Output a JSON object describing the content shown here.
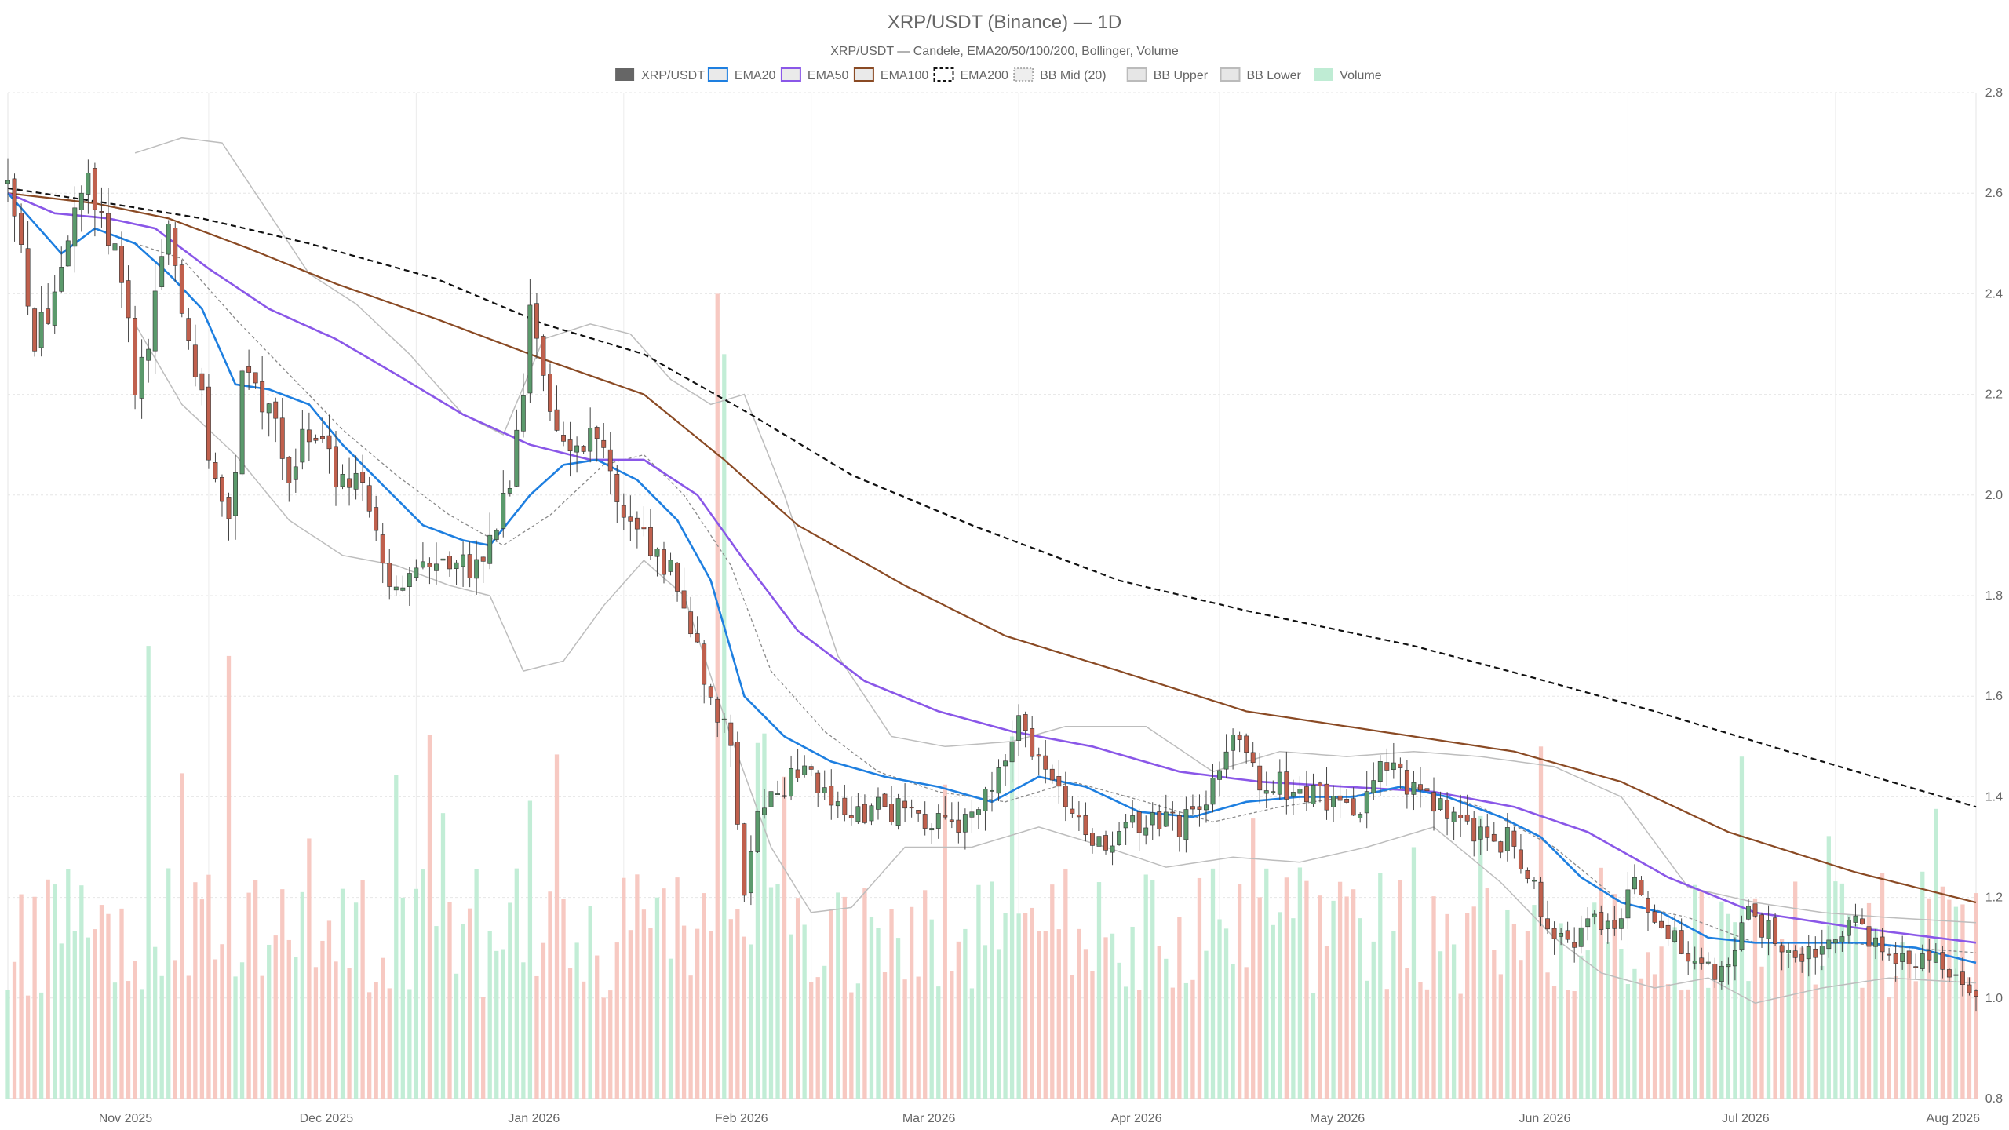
{
  "chart_data": {
    "type": "candlestick",
    "title": "XRP/USDT (Binance) — 1D",
    "subtitle": "XRP/USDT — Candele, EMA20/50/100/200, Bollinger, Volume",
    "legend_position": "top-center",
    "legend": [
      {
        "key": "candles",
        "label": "XRP/USDT",
        "color": "#666666",
        "swatch": "solid"
      },
      {
        "key": "ema20",
        "label": "EMA20",
        "color": "#1e7fe0",
        "swatch": "box"
      },
      {
        "key": "ema50",
        "label": "EMA50",
        "color": "#8a57e8",
        "swatch": "box"
      },
      {
        "key": "ema100",
        "label": "EMA100",
        "color": "#8a4a24",
        "swatch": "box"
      },
      {
        "key": "ema200",
        "label": "EMA200",
        "color": "#111111",
        "swatch": "dashed"
      },
      {
        "key": "bbmid",
        "label": "BB Mid (20)",
        "color": "#999999",
        "swatch": "dotted"
      },
      {
        "key": "bbupper",
        "label": "BB Upper",
        "color": "#bbbbbb",
        "swatch": "box"
      },
      {
        "key": "bblower",
        "label": "BB Lower",
        "color": "#bbbbbb",
        "swatch": "box"
      },
      {
        "key": "volume",
        "label": "Volume",
        "color": "#bfecd4",
        "swatch": "solid"
      }
    ],
    "y_axis": {
      "min": 0.8,
      "max": 2.8,
      "ticks": [
        "0.8",
        "1.0",
        "1.2",
        "1.4",
        "1.6",
        "1.8",
        "2.0",
        "2.2",
        "2.4",
        "2.6",
        "2.8"
      ],
      "position": "right"
    },
    "x_axis": {
      "start_date": "2025-10-17",
      "end_date": "2026-08-07",
      "ticks": [
        {
          "label": "Nov 2025",
          "date": "2025-11-01"
        },
        {
          "label": "Dec 2025",
          "date": "2025-12-01"
        },
        {
          "label": "Jan 2026",
          "date": "2026-01-01"
        },
        {
          "label": "Feb 2026",
          "date": "2026-02-01"
        },
        {
          "label": "Mar 2026",
          "date": "2026-03-01"
        },
        {
          "label": "Apr 2026",
          "date": "2026-04-01"
        },
        {
          "label": "May 2026",
          "date": "2026-05-01"
        },
        {
          "label": "Jun 2026",
          "date": "2026-06-01"
        },
        {
          "label": "Jul 2026",
          "date": "2026-07-01"
        },
        {
          "label": "Aug 2026",
          "date": "2026-08-01"
        }
      ]
    },
    "grid": true,
    "colors": {
      "up": "#5b9a6c",
      "down": "#c0604d",
      "vol_up": "#bfecd4",
      "vol_down": "#f7c6bf"
    },
    "close_anchors": [
      [
        "2025-10-17",
        2.6
      ],
      [
        "2025-10-19",
        2.5
      ],
      [
        "2025-10-21",
        2.32
      ],
      [
        "2025-10-24",
        2.38
      ],
      [
        "2025-10-27",
        2.56
      ],
      [
        "2025-10-29",
        2.6
      ],
      [
        "2025-11-01",
        2.52
      ],
      [
        "2025-11-03",
        2.43
      ],
      [
        "2025-11-05",
        2.22
      ],
      [
        "2025-11-07",
        2.31
      ],
      [
        "2025-11-10",
        2.52
      ],
      [
        "2025-11-13",
        2.28
      ],
      [
        "2025-11-15",
        2.18
      ],
      [
        "2025-11-17",
        2.0
      ],
      [
        "2025-11-19",
        1.92
      ],
      [
        "2025-11-21",
        2.22
      ],
      [
        "2025-11-25",
        2.18
      ],
      [
        "2025-11-28",
        2.02
      ],
      [
        "2025-12-01",
        2.14
      ],
      [
        "2025-12-05",
        2.03
      ],
      [
        "2025-12-09",
        2.01
      ],
      [
        "2025-12-12",
        1.87
      ],
      [
        "2025-12-15",
        1.81
      ],
      [
        "2025-12-18",
        1.9
      ],
      [
        "2025-12-22",
        1.85
      ],
      [
        "2025-12-25",
        1.86
      ],
      [
        "2025-12-28",
        1.9
      ],
      [
        "2025-12-31",
        2.02
      ],
      [
        "2026-01-03",
        2.34
      ],
      [
        "2026-01-06",
        2.18
      ],
      [
        "2026-01-09",
        2.11
      ],
      [
        "2026-01-12",
        2.1
      ],
      [
        "2026-01-15",
        2.05
      ],
      [
        "2026-01-18",
        1.95
      ],
      [
        "2026-01-21",
        1.9
      ],
      [
        "2026-01-24",
        1.86
      ],
      [
        "2026-01-27",
        1.74
      ],
      [
        "2026-01-30",
        1.6
      ],
      [
        "2026-02-02",
        1.52
      ],
      [
        "2026-02-04",
        1.22
      ],
      [
        "2026-02-06",
        1.38
      ],
      [
        "2026-02-09",
        1.4
      ],
      [
        "2026-02-13",
        1.48
      ],
      [
        "2026-02-16",
        1.4
      ],
      [
        "2026-02-20",
        1.35
      ],
      [
        "2026-02-24",
        1.38
      ],
      [
        "2026-03-01",
        1.37
      ],
      [
        "2026-03-06",
        1.34
      ],
      [
        "2026-03-10",
        1.36
      ],
      [
        "2026-03-14",
        1.44
      ],
      [
        "2026-03-17",
        1.54
      ],
      [
        "2026-03-21",
        1.45
      ],
      [
        "2026-03-25",
        1.35
      ],
      [
        "2026-03-29",
        1.31
      ],
      [
        "2026-04-02",
        1.33
      ],
      [
        "2026-04-06",
        1.36
      ],
      [
        "2026-04-10",
        1.34
      ],
      [
        "2026-04-14",
        1.4
      ],
      [
        "2026-04-18",
        1.5
      ],
      [
        "2026-04-22",
        1.44
      ],
      [
        "2026-04-26",
        1.42
      ],
      [
        "2026-04-30",
        1.4
      ],
      [
        "2026-05-04",
        1.38
      ],
      [
        "2026-05-08",
        1.39
      ],
      [
        "2026-05-11",
        1.47
      ],
      [
        "2026-05-14",
        1.42
      ],
      [
        "2026-05-18",
        1.38
      ],
      [
        "2026-05-22",
        1.35
      ],
      [
        "2026-05-26",
        1.32
      ],
      [
        "2026-05-30",
        1.31
      ],
      [
        "2026-06-02",
        1.22
      ],
      [
        "2026-06-05",
        1.1
      ],
      [
        "2026-06-08",
        1.12
      ],
      [
        "2026-06-11",
        1.18
      ],
      [
        "2026-06-14",
        1.12
      ],
      [
        "2026-06-17",
        1.23
      ],
      [
        "2026-06-20",
        1.15
      ],
      [
        "2026-06-23",
        1.13
      ],
      [
        "2026-06-26",
        1.05
      ],
      [
        "2026-06-30",
        1.06
      ],
      [
        "2026-07-04",
        1.16
      ],
      [
        "2026-07-08",
        1.12
      ],
      [
        "2026-07-12",
        1.09
      ],
      [
        "2026-07-16",
        1.11
      ],
      [
        "2026-07-20",
        1.15
      ],
      [
        "2026-07-24",
        1.09
      ],
      [
        "2026-07-28",
        1.08
      ],
      [
        "2026-08-01",
        1.07
      ],
      [
        "2026-08-04",
        1.05
      ],
      [
        "2026-08-07",
        1.02
      ]
    ],
    "ema20_anchors": [
      [
        "2025-10-17",
        2.6
      ],
      [
        "2025-10-21",
        2.54
      ],
      [
        "2025-10-25",
        2.48
      ],
      [
        "2025-10-30",
        2.53
      ],
      [
        "2025-11-05",
        2.5
      ],
      [
        "2025-11-10",
        2.44
      ],
      [
        "2025-11-15",
        2.37
      ],
      [
        "2025-11-20",
        2.22
      ],
      [
        "2025-11-25",
        2.21
      ],
      [
        "2025-12-01",
        2.18
      ],
      [
        "2025-12-06",
        2.1
      ],
      [
        "2025-12-12",
        2.02
      ],
      [
        "2025-12-18",
        1.94
      ],
      [
        "2025-12-24",
        1.91
      ],
      [
        "2025-12-28",
        1.9
      ],
      [
        "2026-01-03",
        2.0
      ],
      [
        "2026-01-08",
        2.06
      ],
      [
        "2026-01-13",
        2.07
      ],
      [
        "2026-01-19",
        2.03
      ],
      [
        "2026-01-25",
        1.95
      ],
      [
        "2026-01-30",
        1.83
      ],
      [
        "2026-02-04",
        1.6
      ],
      [
        "2026-02-10",
        1.52
      ],
      [
        "2026-02-17",
        1.47
      ],
      [
        "2026-02-25",
        1.44
      ],
      [
        "2026-03-05",
        1.42
      ],
      [
        "2026-03-13",
        1.39
      ],
      [
        "2026-03-20",
        1.44
      ],
      [
        "2026-03-27",
        1.42
      ],
      [
        "2026-04-04",
        1.37
      ],
      [
        "2026-04-12",
        1.36
      ],
      [
        "2026-04-20",
        1.39
      ],
      [
        "2026-04-28",
        1.4
      ],
      [
        "2026-05-06",
        1.4
      ],
      [
        "2026-05-13",
        1.42
      ],
      [
        "2026-05-20",
        1.4
      ],
      [
        "2026-05-28",
        1.36
      ],
      [
        "2026-06-03",
        1.32
      ],
      [
        "2026-06-09",
        1.24
      ],
      [
        "2026-06-15",
        1.19
      ],
      [
        "2026-06-21",
        1.17
      ],
      [
        "2026-06-28",
        1.12
      ],
      [
        "2026-07-05",
        1.11
      ],
      [
        "2026-07-13",
        1.11
      ],
      [
        "2026-07-21",
        1.11
      ],
      [
        "2026-07-29",
        1.1
      ],
      [
        "2026-08-07",
        1.07
      ]
    ],
    "ema50_anchors": [
      [
        "2025-10-17",
        2.6
      ],
      [
        "2025-10-24",
        2.56
      ],
      [
        "2025-11-01",
        2.55
      ],
      [
        "2025-11-08",
        2.53
      ],
      [
        "2025-11-16",
        2.45
      ],
      [
        "2025-11-25",
        2.37
      ],
      [
        "2025-12-05",
        2.31
      ],
      [
        "2025-12-14",
        2.24
      ],
      [
        "2025-12-24",
        2.16
      ],
      [
        "2026-01-03",
        2.1
      ],
      [
        "2026-01-12",
        2.07
      ],
      [
        "2026-01-20",
        2.07
      ],
      [
        "2026-01-28",
        2.0
      ],
      [
        "2026-02-04",
        1.87
      ],
      [
        "2026-02-12",
        1.73
      ],
      [
        "2026-02-22",
        1.63
      ],
      [
        "2026-03-05",
        1.57
      ],
      [
        "2026-03-16",
        1.53
      ],
      [
        "2026-03-28",
        1.5
      ],
      [
        "2026-04-10",
        1.45
      ],
      [
        "2026-04-22",
        1.43
      ],
      [
        "2026-05-05",
        1.42
      ],
      [
        "2026-05-18",
        1.41
      ],
      [
        "2026-05-30",
        1.38
      ],
      [
        "2026-06-10",
        1.33
      ],
      [
        "2026-06-22",
        1.24
      ],
      [
        "2026-07-05",
        1.17
      ],
      [
        "2026-07-20",
        1.14
      ],
      [
        "2026-08-07",
        1.11
      ]
    ],
    "ema100_anchors": [
      [
        "2025-10-17",
        2.6
      ],
      [
        "2025-10-30",
        2.58
      ],
      [
        "2025-11-10",
        2.55
      ],
      [
        "2025-11-22",
        2.49
      ],
      [
        "2025-12-05",
        2.42
      ],
      [
        "2025-12-20",
        2.35
      ],
      [
        "2026-01-05",
        2.27
      ],
      [
        "2026-01-20",
        2.2
      ],
      [
        "2026-02-01",
        2.07
      ],
      [
        "2026-02-12",
        1.94
      ],
      [
        "2026-02-28",
        1.82
      ],
      [
        "2026-03-15",
        1.72
      ],
      [
        "2026-04-01",
        1.65
      ],
      [
        "2026-04-20",
        1.57
      ],
      [
        "2026-05-10",
        1.53
      ],
      [
        "2026-05-30",
        1.49
      ],
      [
        "2026-06-15",
        1.43
      ],
      [
        "2026-07-01",
        1.33
      ],
      [
        "2026-07-20",
        1.25
      ],
      [
        "2026-08-07",
        1.19
      ]
    ],
    "ema200_anchors": [
      [
        "2025-10-17",
        2.61
      ],
      [
        "2025-11-01",
        2.58
      ],
      [
        "2025-11-15",
        2.55
      ],
      [
        "2025-12-01",
        2.5
      ],
      [
        "2025-12-20",
        2.43
      ],
      [
        "2026-01-05",
        2.34
      ],
      [
        "2026-01-20",
        2.28
      ],
      [
        "2026-02-05",
        2.16
      ],
      [
        "2026-02-20",
        2.04
      ],
      [
        "2026-03-10",
        1.94
      ],
      [
        "2026-04-01",
        1.83
      ],
      [
        "2026-04-20",
        1.77
      ],
      [
        "2026-05-15",
        1.7
      ],
      [
        "2026-06-01",
        1.64
      ],
      [
        "2026-06-20",
        1.57
      ],
      [
        "2026-07-10",
        1.49
      ],
      [
        "2026-08-07",
        1.38
      ]
    ],
    "bbmid_anchors": [
      [
        "2025-11-05",
        2.5
      ],
      [
        "2025-11-12",
        2.47
      ],
      [
        "2025-11-20",
        2.35
      ],
      [
        "2025-11-28",
        2.24
      ],
      [
        "2025-12-06",
        2.13
      ],
      [
        "2025-12-14",
        2.04
      ],
      [
        "2025-12-22",
        1.96
      ],
      [
        "2025-12-30",
        1.9
      ],
      [
        "2026-01-06",
        1.96
      ],
      [
        "2026-01-14",
        2.06
      ],
      [
        "2026-01-20",
        2.08
      ],
      [
        "2026-01-26",
        2.0
      ],
      [
        "2026-02-02",
        1.86
      ],
      [
        "2026-02-08",
        1.65
      ],
      [
        "2026-02-16",
        1.53
      ],
      [
        "2026-02-24",
        1.45
      ],
      [
        "2026-03-05",
        1.41
      ],
      [
        "2026-03-15",
        1.39
      ],
      [
        "2026-03-25",
        1.43
      ],
      [
        "2026-04-05",
        1.39
      ],
      [
        "2026-04-15",
        1.35
      ],
      [
        "2026-04-25",
        1.38
      ],
      [
        "2026-05-05",
        1.4
      ],
      [
        "2026-05-15",
        1.42
      ],
      [
        "2026-05-25",
        1.38
      ],
      [
        "2026-06-05",
        1.3
      ],
      [
        "2026-06-15",
        1.19
      ],
      [
        "2026-06-25",
        1.16
      ],
      [
        "2026-07-05",
        1.11
      ],
      [
        "2026-07-18",
        1.11
      ],
      [
        "2026-08-07",
        1.09
      ]
    ],
    "bbupper_anchors": [
      [
        "2025-11-05",
        2.68
      ],
      [
        "2025-11-12",
        2.71
      ],
      [
        "2025-11-18",
        2.7
      ],
      [
        "2025-11-24",
        2.58
      ],
      [
        "2025-12-01",
        2.44
      ],
      [
        "2025-12-08",
        2.38
      ],
      [
        "2025-12-16",
        2.28
      ],
      [
        "2025-12-24",
        2.16
      ],
      [
        "2025-12-30",
        2.12
      ],
      [
        "2026-01-05",
        2.31
      ],
      [
        "2026-01-12",
        2.34
      ],
      [
        "2026-01-18",
        2.32
      ],
      [
        "2026-01-24",
        2.23
      ],
      [
        "2026-01-30",
        2.18
      ],
      [
        "2026-02-04",
        2.2
      ],
      [
        "2026-02-10",
        2.0
      ],
      [
        "2026-02-18",
        1.68
      ],
      [
        "2026-02-26",
        1.52
      ],
      [
        "2026-03-06",
        1.5
      ],
      [
        "2026-03-16",
        1.51
      ],
      [
        "2026-03-24",
        1.54
      ],
      [
        "2026-04-05",
        1.54
      ],
      [
        "2026-04-15",
        1.45
      ],
      [
        "2026-04-25",
        1.49
      ],
      [
        "2026-05-05",
        1.48
      ],
      [
        "2026-05-15",
        1.49
      ],
      [
        "2026-05-25",
        1.48
      ],
      [
        "2026-06-05",
        1.46
      ],
      [
        "2026-06-15",
        1.4
      ],
      [
        "2026-06-25",
        1.22
      ],
      [
        "2026-07-05",
        1.19
      ],
      [
        "2026-07-15",
        1.17
      ],
      [
        "2026-07-25",
        1.16
      ],
      [
        "2026-08-07",
        1.15
      ]
    ],
    "bblower_anchors": [
      [
        "2025-11-05",
        2.34
      ],
      [
        "2025-11-12",
        2.18
      ],
      [
        "2025-11-20",
        2.08
      ],
      [
        "2025-11-28",
        1.95
      ],
      [
        "2025-12-06",
        1.88
      ],
      [
        "2025-12-14",
        1.86
      ],
      [
        "2025-12-22",
        1.82
      ],
      [
        "2025-12-28",
        1.8
      ],
      [
        "2026-01-02",
        1.65
      ],
      [
        "2026-01-08",
        1.67
      ],
      [
        "2026-01-14",
        1.78
      ],
      [
        "2026-01-20",
        1.87
      ],
      [
        "2026-01-26",
        1.8
      ],
      [
        "2026-02-02",
        1.52
      ],
      [
        "2026-02-08",
        1.3
      ],
      [
        "2026-02-14",
        1.17
      ],
      [
        "2026-02-20",
        1.18
      ],
      [
        "2026-02-28",
        1.3
      ],
      [
        "2026-03-10",
        1.3
      ],
      [
        "2026-03-20",
        1.34
      ],
      [
        "2026-03-30",
        1.3
      ],
      [
        "2026-04-08",
        1.26
      ],
      [
        "2026-04-18",
        1.28
      ],
      [
        "2026-04-28",
        1.27
      ],
      [
        "2026-05-08",
        1.3
      ],
      [
        "2026-05-18",
        1.34
      ],
      [
        "2026-05-28",
        1.23
      ],
      [
        "2026-06-05",
        1.12
      ],
      [
        "2026-06-12",
        1.05
      ],
      [
        "2026-06-20",
        1.02
      ],
      [
        "2026-06-28",
        1.04
      ],
      [
        "2026-07-05",
        0.99
      ],
      [
        "2026-07-15",
        1.02
      ],
      [
        "2026-07-25",
        1.04
      ],
      [
        "2026-08-07",
        1.03
      ]
    ],
    "volume_spikes": [
      [
        "2025-11-07",
        0.45
      ],
      [
        "2025-11-19",
        0.44
      ],
      [
        "2026-01-31",
        0.8
      ],
      [
        "2026-02-01",
        0.74
      ],
      [
        "2026-02-10",
        0.32
      ],
      [
        "2026-03-16",
        0.36
      ],
      [
        "2026-06-03",
        0.35
      ],
      [
        "2026-05-15",
        0.25
      ]
    ]
  }
}
